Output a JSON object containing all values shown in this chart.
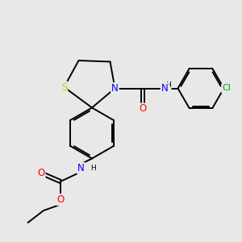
{
  "bg_color": "#e8e8e8",
  "bond_color": "#000000",
  "atom_colors": {
    "S": "#cccc00",
    "N": "#0000ff",
    "O": "#ff0000",
    "Cl": "#00aa00",
    "C": "#000000",
    "H": "#000000"
  },
  "lw": 1.4
}
